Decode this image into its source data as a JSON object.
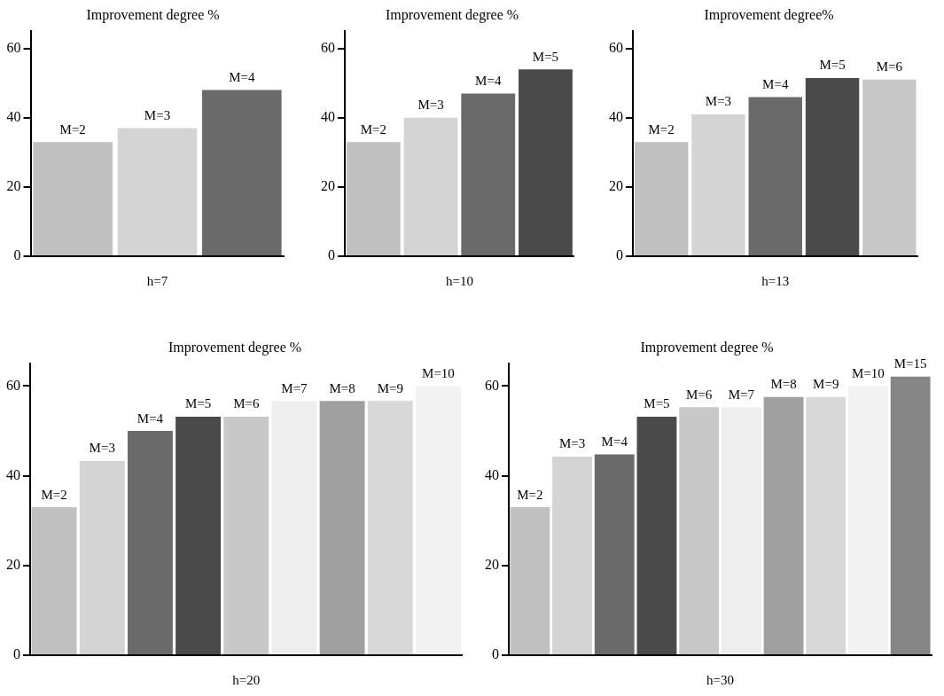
{
  "chart_data": [
    {
      "type": "bar",
      "title": "Improvement degree %",
      "xlabel": "h=7",
      "categories": [
        "M=2",
        "M=3",
        "M=4"
      ],
      "values": [
        33,
        37,
        48
      ],
      "colors": [
        "#c0c0c0",
        "#d4d4d4",
        "#6a6a6a"
      ],
      "ylim": [
        0,
        65
      ],
      "yticks": [
        0,
        20,
        40,
        60
      ]
    },
    {
      "type": "bar",
      "title": "Improvement degree %",
      "xlabel": "h=10",
      "categories": [
        "M=2",
        "M=3",
        "M=4",
        "M=5"
      ],
      "values": [
        33,
        40,
        47,
        54
      ],
      "colors": [
        "#c0c0c0",
        "#d4d4d4",
        "#6a6a6a",
        "#4a4a4a"
      ],
      "ylim": [
        0,
        65
      ],
      "yticks": [
        0,
        20,
        40,
        60
      ]
    },
    {
      "type": "bar",
      "title": "Improvement degree%",
      "xlabel": "h=13",
      "categories": [
        "M=2",
        "M=3",
        "M=4",
        "M=5",
        "M=6"
      ],
      "values": [
        33,
        41,
        46,
        51.5,
        51
      ],
      "colors": [
        "#c0c0c0",
        "#d4d4d4",
        "#6a6a6a",
        "#4a4a4a",
        "#c8c8c8"
      ],
      "ylim": [
        0,
        65
      ],
      "yticks": [
        0,
        20,
        40,
        60
      ]
    },
    {
      "type": "bar",
      "title": "Improvement degree %",
      "xlabel": "h=20",
      "categories": [
        "M=2",
        "M=3",
        "M=4",
        "M=5",
        "M=6",
        "M=7",
        "M=8",
        "M=9",
        "M=10"
      ],
      "values": [
        33,
        43.3,
        50,
        53.2,
        53.2,
        56.7,
        56.7,
        56.7,
        60
      ],
      "colors": [
        "#c0c0c0",
        "#d4d4d4",
        "#6a6a6a",
        "#4a4a4a",
        "#c8c8c8",
        "#eeeeee",
        "#a0a0a0",
        "#d8d8d8",
        "#f2f2f2"
      ],
      "ylim": [
        0,
        65
      ],
      "yticks": [
        0,
        20,
        40,
        60
      ]
    },
    {
      "type": "bar",
      "title": "Improvement degree %",
      "xlabel": "h=30",
      "categories": [
        "M=2",
        "M=3",
        "M=4",
        "M=5",
        "M=6",
        "M=7",
        "M=8",
        "M=9",
        "M=10",
        "M=15"
      ],
      "values": [
        33,
        44.3,
        44.8,
        53.2,
        55.3,
        55.3,
        57.6,
        57.6,
        60,
        62.1
      ],
      "colors": [
        "#c0c0c0",
        "#d4d4d4",
        "#6a6a6a",
        "#4a4a4a",
        "#c8c8c8",
        "#eeeeee",
        "#a0a0a0",
        "#d8d8d8",
        "#f2f2f2",
        "#858585"
      ],
      "ylim": [
        0,
        65
      ],
      "yticks": [
        0,
        20,
        40,
        60
      ]
    }
  ]
}
